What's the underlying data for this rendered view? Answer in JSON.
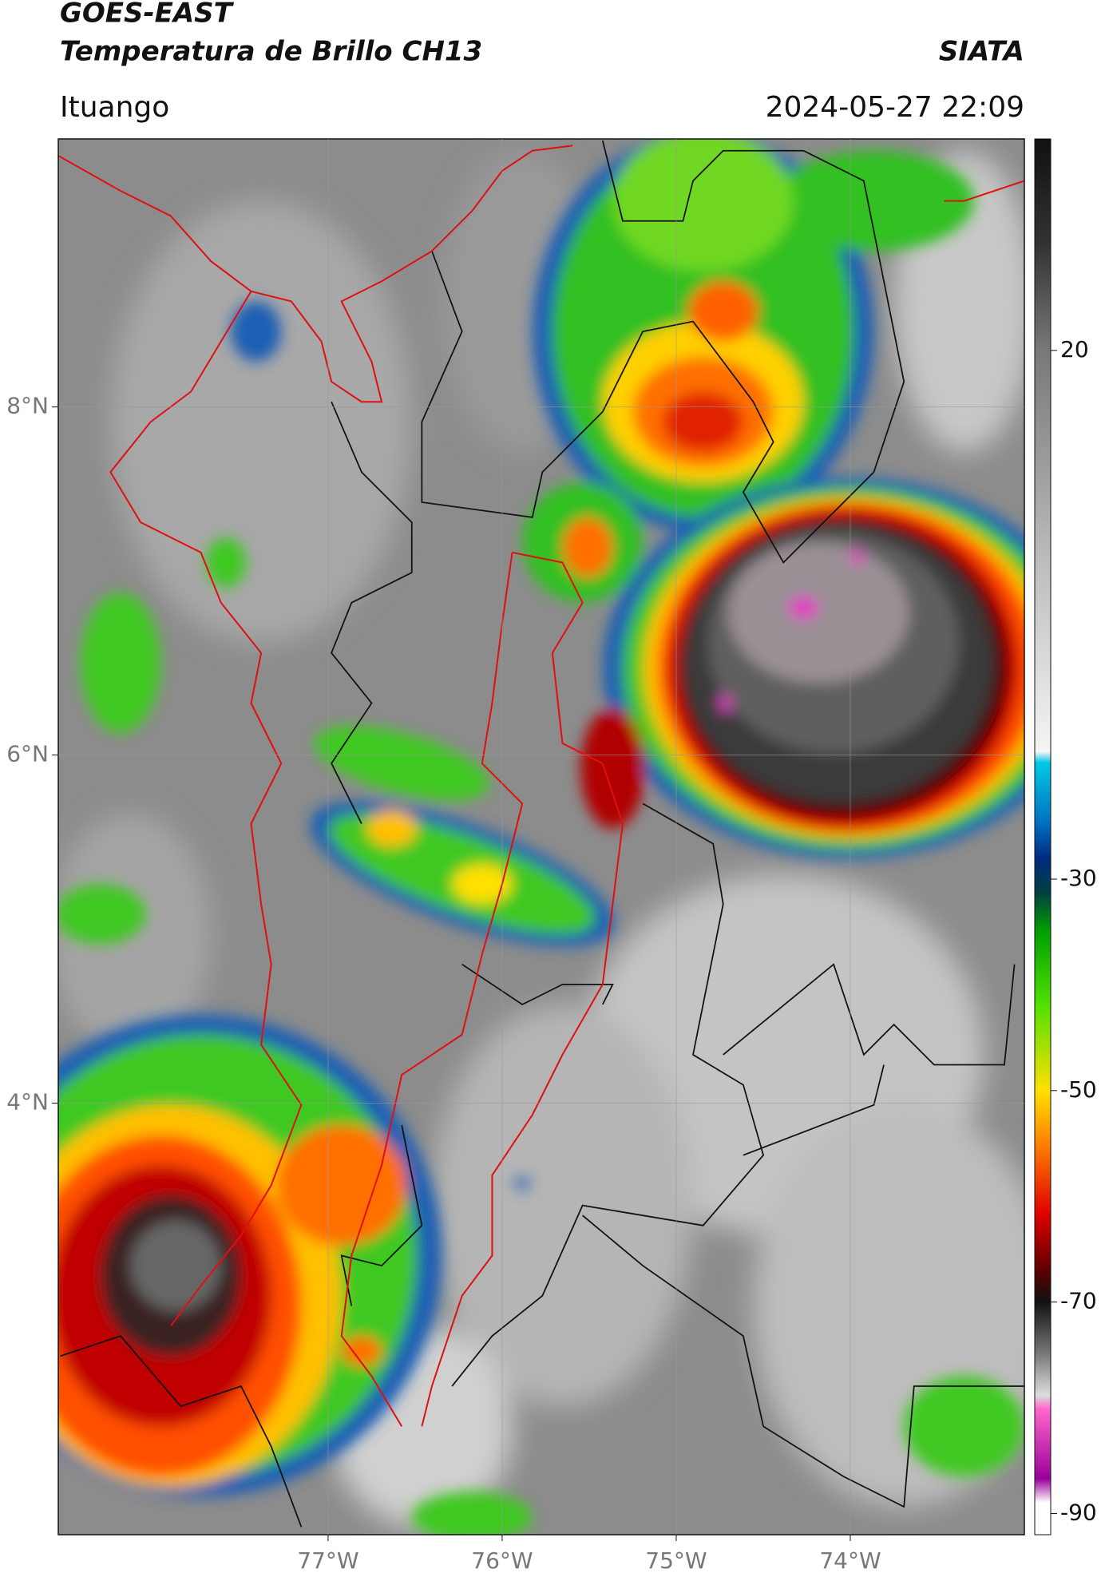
{
  "header": {
    "title": "GOES-EAST",
    "subtitle": "Temperatura de Brillo CH13",
    "source": "SIATA",
    "location": "Ituango",
    "datetime": "2024-05-27 22:09"
  },
  "map": {
    "xlim": [
      -78.55,
      -73.0
    ],
    "ylim": [
      1.52,
      9.54
    ],
    "xticks": [
      {
        "value": -77,
        "label": "77°W"
      },
      {
        "value": -76,
        "label": "76°W"
      },
      {
        "value": -75,
        "label": "75°W"
      },
      {
        "value": -74,
        "label": "74°W"
      }
    ],
    "yticks": [
      {
        "value": 8,
        "label": "8°N"
      },
      {
        "value": 6,
        "label": "6°N"
      },
      {
        "value": 4,
        "label": "4°N"
      }
    ],
    "grid": true
  },
  "colorbar": {
    "lim": [
      -92,
      40
    ],
    "ticks": [
      20,
      -30,
      -50,
      -70,
      -90
    ]
  }
}
